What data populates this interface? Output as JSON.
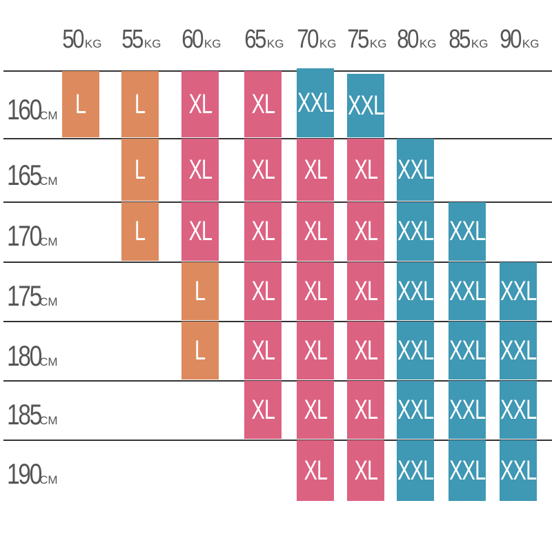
{
  "colors": {
    "L": "#dd8b5e",
    "XL": "#dc6282",
    "XXL": "#3f98b4",
    "line": "#333333",
    "text": "#555555"
  },
  "weight_unit": "KG",
  "height_unit": "CM",
  "weights": [
    "50",
    "55",
    "60",
    "65",
    "70",
    "75",
    "80",
    "85",
    "90"
  ],
  "heights": [
    "160",
    "165",
    "170",
    "175",
    "180",
    "185",
    "190"
  ],
  "chart_data": {
    "type": "table",
    "columns": [
      "50KG",
      "55KG",
      "60KG",
      "65KG",
      "70KG",
      "75KG",
      "80KG",
      "85KG",
      "90KG"
    ],
    "rows": [
      {
        "height": "160CM",
        "sizes": [
          "L",
          "L",
          "XL",
          "XL",
          "XXL",
          "XXL",
          "",
          "",
          ""
        ]
      },
      {
        "height": "165CM",
        "sizes": [
          "",
          "L",
          "XL",
          "XL",
          "XL",
          "XL",
          "XXL",
          "",
          ""
        ]
      },
      {
        "height": "170CM",
        "sizes": [
          "",
          "L",
          "XL",
          "XL",
          "XL",
          "XL",
          "XXL",
          "XXL",
          ""
        ]
      },
      {
        "height": "175CM",
        "sizes": [
          "",
          "",
          "L",
          "XL",
          "XL",
          "XL",
          "XXL",
          "XXL",
          "XXL"
        ]
      },
      {
        "height": "180CM",
        "sizes": [
          "",
          "",
          "L",
          "XL",
          "XL",
          "XL",
          "XXL",
          "XXL",
          "XXL"
        ]
      },
      {
        "height": "185CM",
        "sizes": [
          "",
          "",
          "",
          "XL",
          "XL",
          "XL",
          "XXL",
          "XXL",
          "XXL"
        ]
      },
      {
        "height": "190CM",
        "sizes": [
          "",
          "",
          "",
          "",
          "XL",
          "XL",
          "XXL",
          "XXL",
          "XXL"
        ]
      }
    ]
  }
}
